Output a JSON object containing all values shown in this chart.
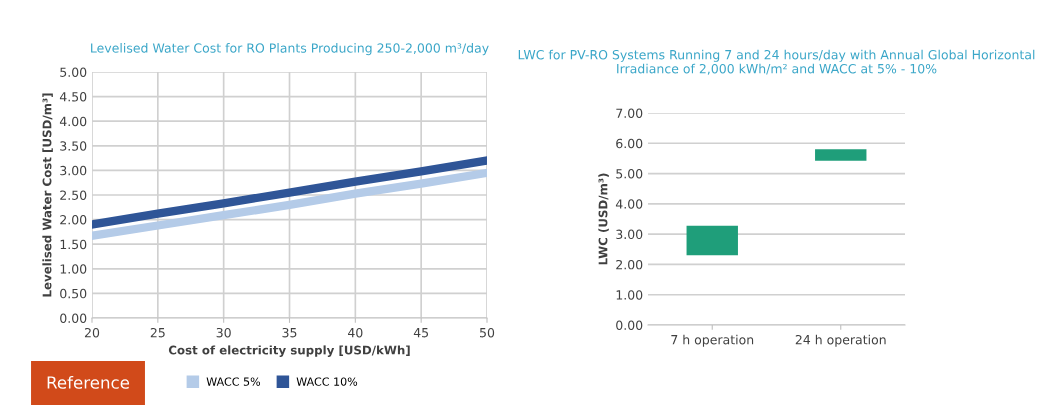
{
  "chart_data": [
    {
      "type": "line",
      "title": "Levelised Water Cost for RO Plants Producing 250-2,000 m³/day",
      "xlabel": "Cost of electricity supply [USD/kWh]",
      "ylabel": "Levelised Water Cost [USD/m³]",
      "x": [
        20,
        25,
        30,
        35,
        40,
        45,
        50
      ],
      "series": [
        {
          "name": "WACC 5%",
          "color": "#b4cbe8",
          "values": [
            1.67,
            1.88,
            2.09,
            2.3,
            2.53,
            2.73,
            2.95
          ]
        },
        {
          "name": "WACC 10%",
          "color": "#2f5597",
          "values": [
            1.9,
            2.12,
            2.33,
            2.55,
            2.77,
            2.98,
            3.2
          ]
        }
      ],
      "xlim": [
        20,
        50
      ],
      "xticks": [
        20,
        25,
        30,
        35,
        40,
        45,
        50
      ],
      "ylim": [
        0,
        5
      ],
      "yticks": [
        {
          "value": 0,
          "label": "0.00"
        },
        {
          "value": 0.5,
          "label": "0.50"
        },
        {
          "value": 1,
          "label": "1.00"
        },
        {
          "value": 1.5,
          "label": "1.50"
        },
        {
          "value": 2,
          "label": "2.00"
        },
        {
          "value": 2.5,
          "label": "2.50"
        },
        {
          "value": 3,
          "label": "3.00"
        },
        {
          "value": 3.5,
          "label": "3.50"
        },
        {
          "value": 4,
          "label": "4.00"
        },
        {
          "value": 4.5,
          "label": "4.50"
        },
        {
          "value": 5,
          "label": "5.00"
        }
      ],
      "grid": true,
      "legend": "bottom",
      "marker": "none",
      "line_style": "solid",
      "annotations": [
        "Reference"
      ]
    },
    {
      "type": "bar",
      "title": "LWC for PV-RO Systems Running 7 and 24 hours/day with Annual Global Horizontal Irradiance of 2,000 kWh/m² and WACC at 5% - 10%",
      "ylabel": "LWC (USD/m³)",
      "categories": [
        "7 h operation",
        "24 h operation"
      ],
      "values": [
        0.98,
        0.38
      ],
      "base": [
        2.3,
        5.42
      ],
      "color": "#1f9e7a",
      "ylim": [
        0,
        7
      ],
      "yticks": [
        {
          "value": 0,
          "label": "0.00"
        },
        {
          "value": 1,
          "label": "1.00"
        },
        {
          "value": 2,
          "label": "2.00"
        },
        {
          "value": 3,
          "label": "3.00"
        },
        {
          "value": 4,
          "label": "4.00"
        },
        {
          "value": 5,
          "label": "5.00"
        },
        {
          "value": 6,
          "label": "6.00"
        },
        {
          "value": 7,
          "label": "7.00"
        }
      ],
      "grid": "y"
    }
  ]
}
